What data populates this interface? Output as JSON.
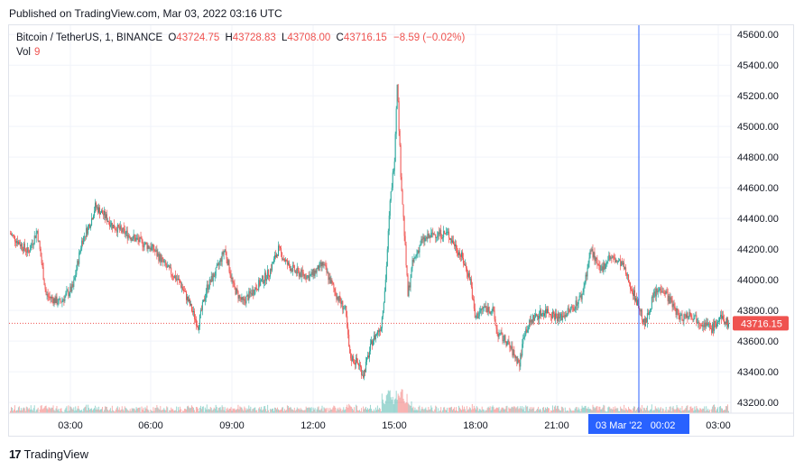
{
  "header": {
    "published": "Published on TradingView.com, Mar 03, 2022 03:16 UTC"
  },
  "legend": {
    "symbol": "Bitcoin / TetherUS, 1, BINANCE",
    "o_label": "O",
    "o_value": "43724.75",
    "h_label": "H",
    "h_value": "43728.83",
    "l_label": "L",
    "l_value": "43708.00",
    "c_label": "C",
    "c_value": "43716.15",
    "change": "−8.59 (−0.02%)",
    "vol_label": "Vol",
    "vol_value": "9"
  },
  "footer": {
    "logo_text": "TradingView"
  },
  "colors": {
    "up": "#26a69a",
    "down": "#ef5350",
    "crosshair": "#2962ff",
    "grid": "#f0f3fa",
    "last_price_bg": "#ef5350"
  },
  "chart_data": {
    "type": "candlestick",
    "price_axis": {
      "ticks": [
        "45600.00",
        "45400.00",
        "45200.00",
        "45000.00",
        "44800.00",
        "44600.00",
        "44400.00",
        "44200.00",
        "44000.00",
        "43800.00",
        "43600.00",
        "43400.00",
        "43200.00"
      ],
      "range": [
        43130,
        45660
      ]
    },
    "time_axis": {
      "ticks": [
        "03:00",
        "06:00",
        "09:00",
        "12:00",
        "15:00",
        "18:00",
        "21:00",
        "03:00"
      ]
    },
    "last_price": "43716.15",
    "crosshair_label": "03 Mar '22   00:02",
    "price_path": [
      [
        0,
        44300
      ],
      [
        20,
        44180
      ],
      [
        30,
        44320
      ],
      [
        40,
        43900
      ],
      [
        55,
        43850
      ],
      [
        70,
        43950
      ],
      [
        80,
        44250
      ],
      [
        90,
        44380
      ],
      [
        95,
        44480
      ],
      [
        105,
        44420
      ],
      [
        115,
        44350
      ],
      [
        130,
        44300
      ],
      [
        145,
        44250
      ],
      [
        160,
        44200
      ],
      [
        175,
        44080
      ],
      [
        190,
        43980
      ],
      [
        200,
        43850
      ],
      [
        210,
        43700
      ],
      [
        220,
        43950
      ],
      [
        230,
        44050
      ],
      [
        240,
        44200
      ],
      [
        250,
        43950
      ],
      [
        260,
        43850
      ],
      [
        275,
        43950
      ],
      [
        290,
        44050
      ],
      [
        300,
        44200
      ],
      [
        310,
        44100
      ],
      [
        320,
        44050
      ],
      [
        335,
        44020
      ],
      [
        350,
        44100
      ],
      [
        365,
        43900
      ],
      [
        375,
        43800
      ],
      [
        380,
        43500
      ],
      [
        390,
        43450
      ],
      [
        395,
        43380
      ],
      [
        405,
        43600
      ],
      [
        415,
        43700
      ],
      [
        420,
        44000
      ],
      [
        425,
        44500
      ],
      [
        430,
        44800
      ],
      [
        433,
        45300
      ],
      [
        437,
        44700
      ],
      [
        440,
        44400
      ],
      [
        445,
        43900
      ],
      [
        450,
        44100
      ],
      [
        460,
        44250
      ],
      [
        475,
        44300
      ],
      [
        490,
        44300
      ],
      [
        505,
        44150
      ],
      [
        515,
        44000
      ],
      [
        520,
        43750
      ],
      [
        530,
        43820
      ],
      [
        540,
        43800
      ],
      [
        545,
        43650
      ],
      [
        555,
        43600
      ],
      [
        565,
        43500
      ],
      [
        570,
        43450
      ],
      [
        575,
        43650
      ],
      [
        585,
        43750
      ],
      [
        600,
        43800
      ],
      [
        615,
        43750
      ],
      [
        630,
        43820
      ],
      [
        640,
        43900
      ],
      [
        650,
        44200
      ],
      [
        660,
        44050
      ],
      [
        670,
        44150
      ],
      [
        685,
        44100
      ],
      [
        695,
        43950
      ],
      [
        705,
        43800
      ],
      [
        710,
        43700
      ],
      [
        720,
        43900
      ],
      [
        730,
        43950
      ],
      [
        740,
        43850
      ],
      [
        750,
        43750
      ],
      [
        760,
        43780
      ],
      [
        775,
        43720
      ],
      [
        785,
        43680
      ],
      [
        795,
        43750
      ],
      [
        804,
        43716
      ]
    ]
  }
}
